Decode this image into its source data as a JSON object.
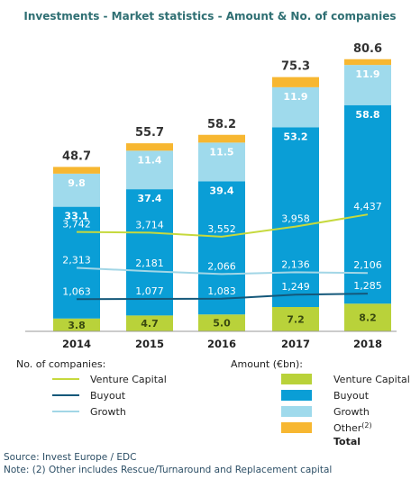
{
  "chart_data": {
    "type": "bar",
    "title": "Investments - Market statistics - Amount & No. of companies",
    "categories": [
      "2014",
      "2015",
      "2016",
      "2017",
      "2018"
    ],
    "amount_series": [
      {
        "name": "Venture Capital",
        "color": "#b9d23a",
        "values": [
          3.8,
          4.7,
          5.0,
          7.2,
          8.2
        ]
      },
      {
        "name": "Buyout",
        "color": "#0a9ed6",
        "values": [
          33.1,
          37.4,
          39.4,
          53.2,
          58.8
        ]
      },
      {
        "name": "Growth",
        "color": "#9fdaec",
        "values": [
          9.8,
          11.4,
          11.5,
          11.9,
          11.9
        ]
      },
      {
        "name": "Other",
        "color": "#f7b731",
        "values": [
          2.0,
          2.2,
          2.3,
          3.0,
          1.7
        ]
      }
    ],
    "totals": [
      48.7,
      55.7,
      58.2,
      75.3,
      80.6
    ],
    "segment_labels": [
      [
        "3.8",
        "33.1",
        "9.8",
        ""
      ],
      [
        "4.7",
        "37.4",
        "11.4",
        ""
      ],
      [
        "5.0",
        "39.4",
        "11.5",
        ""
      ],
      [
        "7.2",
        "53.2",
        "11.9",
        ""
      ],
      [
        "8.2",
        "58.8",
        "11.9",
        ""
      ]
    ],
    "total_labels": [
      "48.7",
      "55.7",
      "58.2",
      "75.3",
      "80.6"
    ],
    "count_series": [
      {
        "name": "Venture Capital",
        "color": "#c6d93d",
        "values": [
          3742,
          3714,
          3552,
          3958,
          4437
        ],
        "labels": [
          "3,742",
          "3,714",
          "3,552",
          "3,958",
          "4,437"
        ]
      },
      {
        "name": "Buyout",
        "color": "#14587a",
        "values": [
          1063,
          1077,
          1083,
          1249,
          1285
        ],
        "labels": [
          "1,063",
          "1,077",
          "1,083",
          "1,249",
          "1,285"
        ]
      },
      {
        "name": "Growth",
        "color": "#a2d6e6",
        "values": [
          2313,
          2181,
          2066,
          2136,
          2106
        ],
        "labels": [
          "2,313",
          "2,181",
          "2,066",
          "2,136",
          "2,106"
        ]
      }
    ],
    "legend": {
      "companies_heading": "No. of companies:",
      "amount_heading": "Amount (€bn):",
      "other_label": "Other",
      "other_superscript": "(2)",
      "total_label": "Total"
    },
    "source": "Source: Invest Europe / EDC",
    "note": "Note: (2) Other includes Rescue/Turnaround and Replacement capital"
  }
}
